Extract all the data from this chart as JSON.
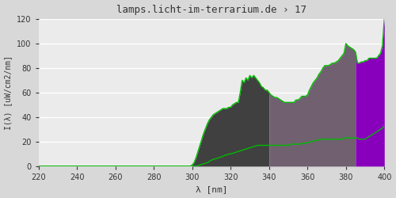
{
  "title": "lamps.licht-im-terrarium.de › 17",
  "xlabel": "λ [nm]",
  "ylabel": "I(λ) [uW/cm2/nm]",
  "xlim": [
    220,
    400
  ],
  "ylim": [
    0,
    120
  ],
  "xticks": [
    220,
    240,
    260,
    280,
    300,
    320,
    340,
    360,
    380,
    400
  ],
  "yticks": [
    0,
    20,
    40,
    60,
    80,
    100,
    120
  ],
  "bg_color": "#d8d8d8",
  "plot_bg_color": "#ebebeb",
  "grid_color": "#ffffff",
  "title_color": "#333333",
  "font_family": "monospace",
  "region1_color": "#404040",
  "region2_color": "#706070",
  "region3_color": "#8800bb",
  "line_color": "#00bb00",
  "upper_line_x": [
    220,
    299,
    300,
    301,
    302,
    303,
    304,
    305,
    306,
    307,
    308,
    309,
    310,
    311,
    312,
    313,
    314,
    315,
    316,
    317,
    318,
    319,
    320,
    321,
    322,
    323,
    324,
    325,
    326,
    327,
    328,
    329,
    330,
    331,
    332,
    333,
    334,
    335,
    336,
    337,
    338,
    339,
    340,
    341,
    342,
    343,
    344,
    345,
    346,
    347,
    348,
    349,
    350,
    351,
    352,
    353,
    354,
    355,
    356,
    357,
    358,
    359,
    360,
    361,
    362,
    363,
    364,
    365,
    366,
    367,
    368,
    369,
    370,
    371,
    372,
    373,
    374,
    375,
    376,
    377,
    378,
    379,
    380,
    381,
    382,
    383,
    384,
    385,
    386,
    387,
    388,
    389,
    390,
    391,
    392,
    393,
    394,
    395,
    396,
    397,
    398,
    399,
    400
  ],
  "upper_line_y": [
    0,
    0,
    1,
    3,
    7,
    12,
    17,
    22,
    27,
    31,
    35,
    38,
    40,
    42,
    43,
    44,
    45,
    46,
    47,
    47,
    47,
    48,
    48,
    50,
    51,
    52,
    52,
    60,
    70,
    68,
    72,
    70,
    74,
    72,
    74,
    72,
    70,
    68,
    65,
    64,
    62,
    62,
    60,
    58,
    57,
    56,
    56,
    55,
    54,
    53,
    52,
    52,
    52,
    52,
    52,
    52,
    54,
    54,
    55,
    57,
    57,
    57,
    58,
    62,
    65,
    68,
    70,
    72,
    75,
    77,
    80,
    82,
    82,
    82,
    83,
    84,
    84,
    85,
    86,
    88,
    90,
    92,
    100,
    98,
    97,
    96,
    95,
    93,
    84,
    84,
    85,
    85,
    86,
    86,
    88,
    88,
    88,
    88,
    88,
    90,
    92,
    98,
    120
  ],
  "lower_line_x": [
    220,
    299,
    300,
    301,
    302,
    303,
    304,
    305,
    306,
    307,
    308,
    309,
    310,
    311,
    312,
    313,
    314,
    315,
    316,
    317,
    318,
    319,
    320,
    321,
    322,
    323,
    324,
    325,
    326,
    327,
    328,
    329,
    330,
    331,
    332,
    333,
    334,
    335,
    336,
    337,
    338,
    339,
    340,
    341,
    342,
    343,
    344,
    345,
    346,
    347,
    348,
    349,
    350,
    351,
    352,
    353,
    354,
    355,
    356,
    357,
    358,
    359,
    360,
    361,
    362,
    363,
    364,
    365,
    366,
    367,
    368,
    369,
    370,
    371,
    372,
    373,
    374,
    375,
    376,
    377,
    378,
    379,
    380,
    381,
    382,
    383,
    384,
    385,
    386,
    387,
    388,
    389,
    390,
    391,
    392,
    393,
    394,
    395,
    396,
    397,
    398,
    399,
    400
  ],
  "lower_line_y": [
    0,
    0,
    0,
    0,
    0,
    0.5,
    1,
    1.5,
    2,
    2.5,
    3,
    4,
    5,
    5.5,
    6,
    6.5,
    7,
    7.5,
    8,
    9,
    9,
    10,
    10,
    10.5,
    11,
    11.5,
    12,
    12.5,
    13,
    13.5,
    14,
    14.5,
    15,
    15.5,
    16,
    16.5,
    17,
    17,
    17,
    17,
    17,
    17,
    17,
    17,
    17,
    17,
    17,
    17,
    17,
    17,
    17,
    17,
    17,
    17.5,
    18,
    18,
    18,
    18,
    18,
    18.5,
    18.5,
    19,
    19,
    19.5,
    20,
    20.5,
    21,
    21,
    21.5,
    22,
    22,
    22,
    22,
    22,
    22,
    22,
    22,
    22,
    22,
    22,
    22,
    23,
    23,
    23,
    23,
    23,
    23,
    23,
    23,
    22,
    22,
    22,
    22,
    23,
    24,
    25,
    26,
    27,
    28,
    29,
    30,
    31,
    33
  ],
  "region1_x_start": 300,
  "region1_x_end": 340,
  "region2_x_start": 340,
  "region2_x_end": 385,
  "region3_x_start": 385,
  "region3_x_end": 400
}
